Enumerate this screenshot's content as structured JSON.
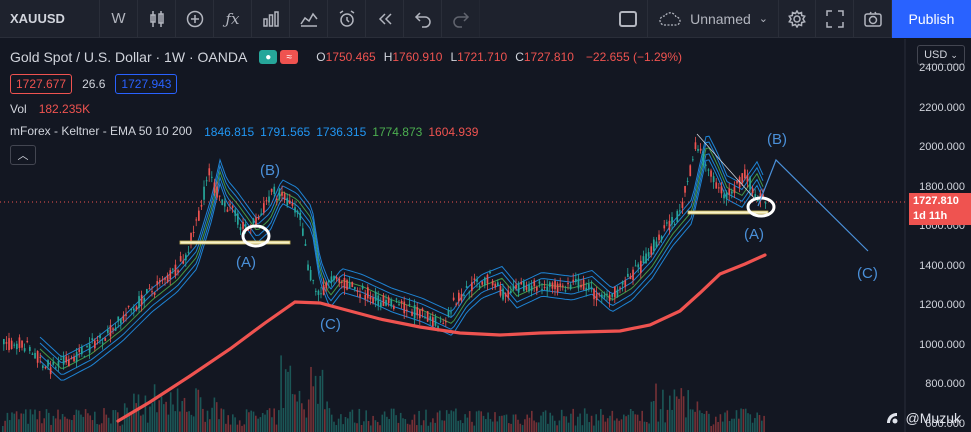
{
  "toolbar": {
    "symbol": "XAUUSD",
    "interval": "W",
    "layout_name": "Unnamed",
    "publish_label": "Publish"
  },
  "legend": {
    "title": "Gold Spot / U.S. Dollar · 1W · OANDA",
    "ohlc": [
      {
        "k": "O",
        "v": "1750.465"
      },
      {
        "k": "H",
        "v": "1760.910"
      },
      {
        "k": "L",
        "v": "1721.710"
      },
      {
        "k": "C",
        "v": "1727.810"
      }
    ],
    "change": "−22.655 (−1.29%)",
    "bid": "1727.677",
    "spread": "26.6",
    "ask": "1727.943",
    "vol_label": "Vol",
    "vol_value": "182.235K",
    "indicator_name": "mForex - Keltner - EMA 50 10 200",
    "indicator_values": [
      {
        "v": "1846.815",
        "color": "#2196f3"
      },
      {
        "v": "1791.565",
        "color": "#2196f3"
      },
      {
        "v": "1736.315",
        "color": "#2196f3"
      },
      {
        "v": "1774.873",
        "color": "#4caf50"
      },
      {
        "v": "1604.939",
        "color": "#ef5350"
      }
    ]
  },
  "axis": {
    "currency": "USD",
    "ticks": [
      "2400.000",
      "2200.000",
      "2000.000",
      "1800.000",
      "1600.000",
      "1400.000",
      "1200.000",
      "1000.000",
      "800.000",
      "600.000"
    ],
    "last_price": "1727.810",
    "countdown": "1d 11h"
  },
  "waves": {
    "b1": "(B)",
    "a1": "(A)",
    "c1": "(C)",
    "b2": "(B)",
    "a2": "(A)",
    "c2": "(C)"
  },
  "watermark": "@Muzuk",
  "colors": {
    "up": "#26a69a",
    "down": "#ef5350",
    "ema200": "#ef5350",
    "keltner": "#2196f3",
    "accent": "#2962ff",
    "background": "#131722"
  }
}
